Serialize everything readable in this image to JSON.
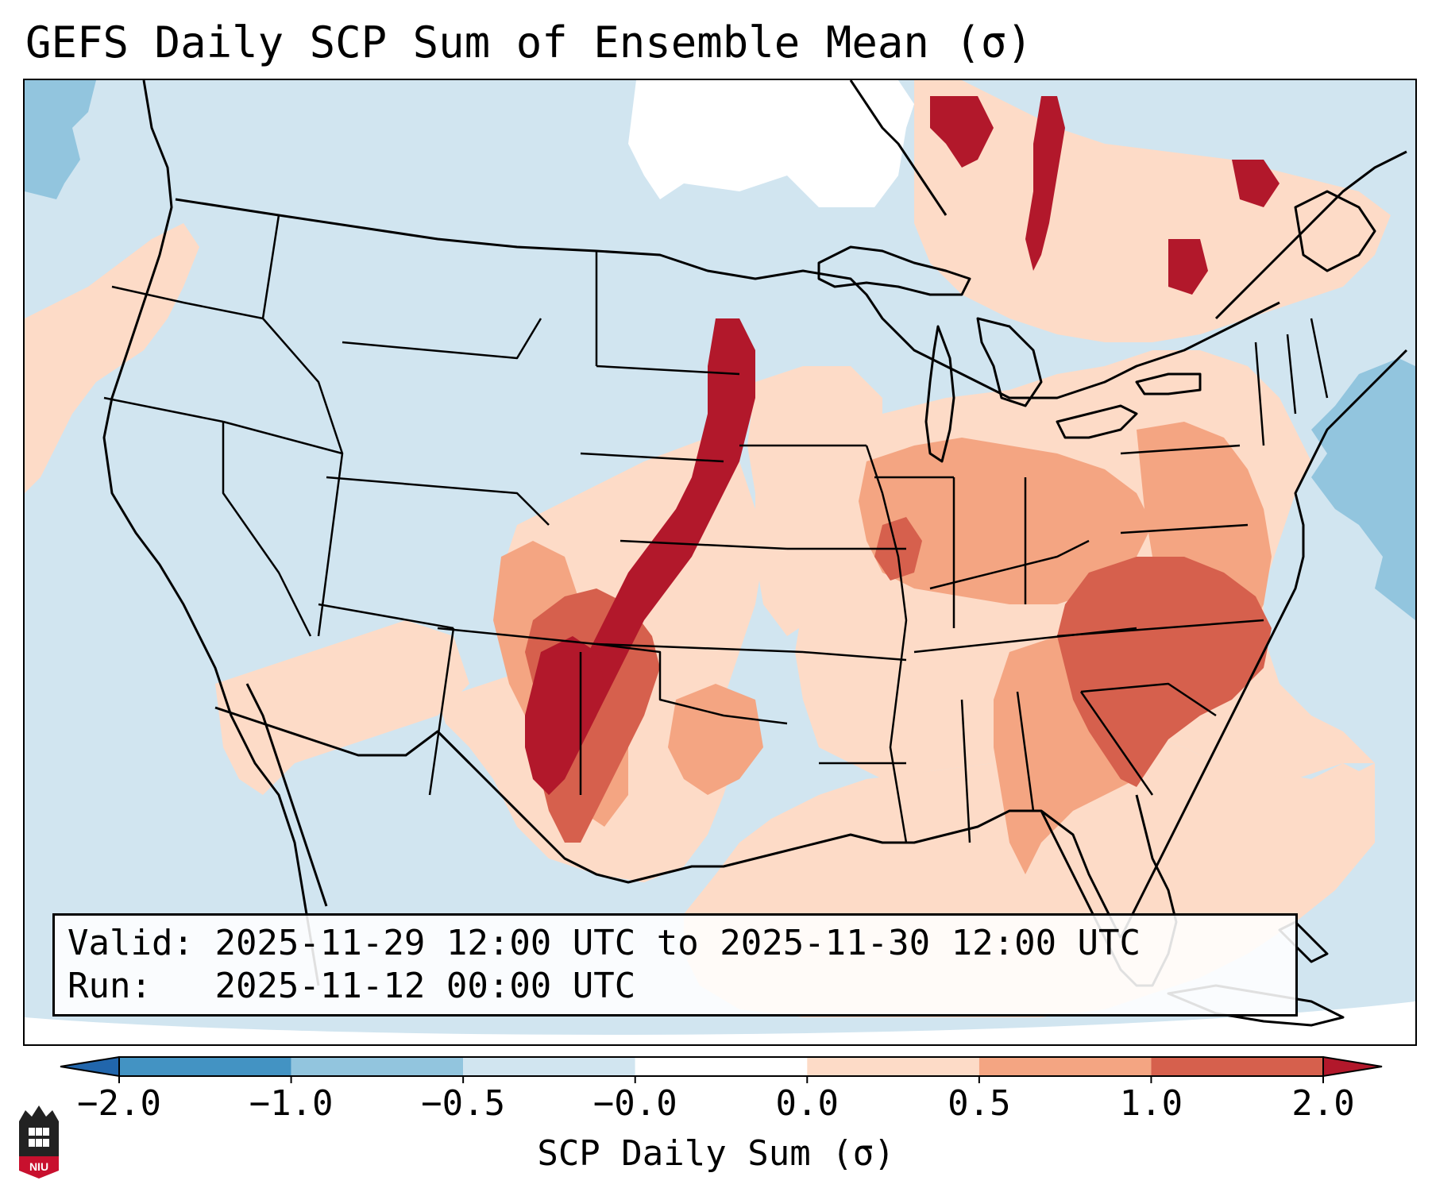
{
  "title": "GEFS Daily SCP Sum of Ensemble Mean (σ)",
  "info": {
    "valid_label": "Valid:",
    "valid_value": "2025-11-29 12:00 UTC to 2025-11-30 12:00 UTC",
    "run_label": "Run:",
    "run_value": "2025-11-12 00:00 UTC"
  },
  "colorbar": {
    "label": "SCP Daily Sum (σ)",
    "ticks": [
      "−2.0",
      "−1.0",
      "−0.5",
      "−0.0",
      "0.0",
      "0.5",
      "1.0",
      "2.0"
    ],
    "bins": [
      {
        "range": "below -2.0",
        "color": "#2166ac"
      },
      {
        "range": "-2.0 to -1.0",
        "color": "#4393c3"
      },
      {
        "range": "-1.0 to -0.5",
        "color": "#92c5de"
      },
      {
        "range": "-0.5 to -0.0",
        "color": "#d1e5f0"
      },
      {
        "range": "-0.0 to 0.0",
        "color": "#ffffff"
      },
      {
        "range": "0.0 to 0.5",
        "color": "#fddbc7"
      },
      {
        "range": "0.5 to 1.0",
        "color": "#f4a582"
      },
      {
        "range": "1.0 to 2.0",
        "color": "#d6604d"
      },
      {
        "range": "above 2.0",
        "color": "#b2182b"
      }
    ]
  },
  "map": {
    "projection": "Lambert conformal, contiguous United States",
    "background_anomaly": "-0.5 to -0.0",
    "regions": [
      {
        "area": "Southern Plains - Kansas - Nebraska - Iowa corridor",
        "category": "above 2.0"
      },
      {
        "area": "Eastern New Mexico / West Texas",
        "category": "1.0 to 2.0"
      },
      {
        "area": "Carolinas / Georgia",
        "category": "1.0 to 2.0"
      },
      {
        "area": "Ohio Valley / Mid-Atlantic",
        "category": "0.5 to 1.0"
      },
      {
        "area": "Gulf of Mexico / Southeast",
        "category": "0.0 to 0.5"
      },
      {
        "area": "Northern Ontario / Quebec",
        "category": "above 2.0"
      },
      {
        "area": "Northern Manitoba",
        "category": "-0.0 to 0.0"
      },
      {
        "area": "Western Atlantic",
        "category": "-1.0 to -0.5"
      },
      {
        "area": "Northeast Pacific",
        "category": "-1.0 to -0.5"
      }
    ]
  },
  "logo": {
    "text": "NIU"
  },
  "colors": {
    "coast_line": "#000000",
    "outside_domain": "#ffffff"
  }
}
